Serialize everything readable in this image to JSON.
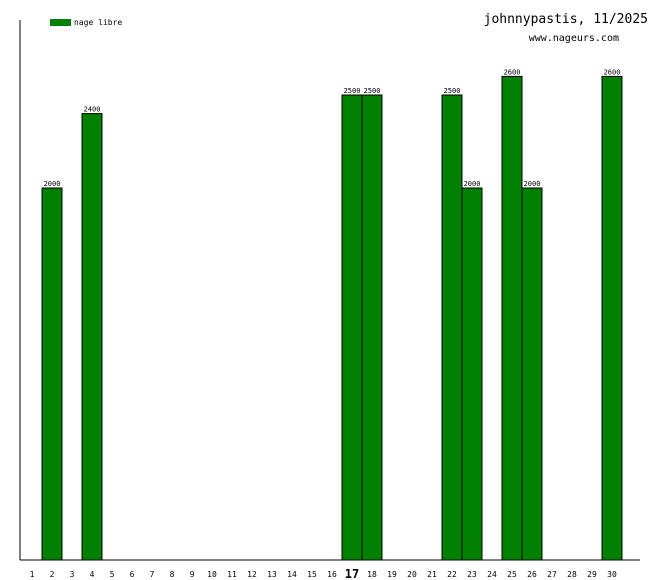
{
  "header": {
    "title": "johnnypastis, 11/2025",
    "site": "www.nageurs.com"
  },
  "legend": {
    "label": "nage libre",
    "color": "#008000"
  },
  "chart_data": {
    "type": "bar",
    "categories": [
      "1",
      "2",
      "3",
      "4",
      "5",
      "6",
      "7",
      "8",
      "9",
      "10",
      "11",
      "12",
      "13",
      "14",
      "15",
      "16",
      "17",
      "18",
      "19",
      "20",
      "21",
      "22",
      "23",
      "24",
      "25",
      "26",
      "27",
      "28",
      "29",
      "30"
    ],
    "series": [
      {
        "name": "nage libre",
        "color": "#008000",
        "values": [
          0,
          2000,
          0,
          2400,
          0,
          0,
          0,
          0,
          0,
          0,
          0,
          0,
          0,
          0,
          0,
          0,
          2500,
          2500,
          0,
          0,
          0,
          2500,
          2000,
          0,
          2600,
          2000,
          0,
          0,
          0,
          2600
        ]
      }
    ],
    "highlighted_category": "17",
    "ylim": [
      0,
      2900
    ],
    "grid": false,
    "legend_position": "top-left"
  }
}
